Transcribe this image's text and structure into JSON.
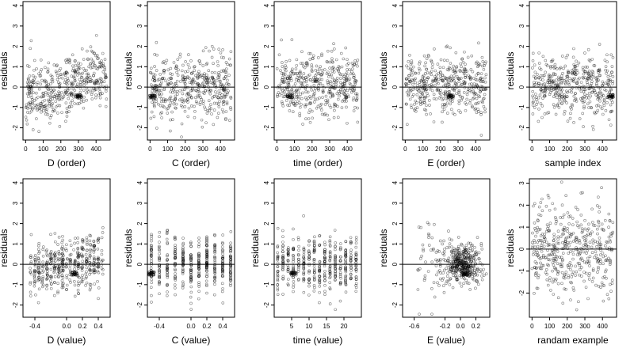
{
  "chart_data": [
    {
      "type": "scatter",
      "xlabel": "D (order)",
      "ylabel": "residuals",
      "xlim": [
        -15,
        480
      ],
      "ylim": [
        -2.6,
        4.2
      ],
      "xticks": [
        0,
        100,
        200,
        300,
        400
      ],
      "yticks": [
        -2,
        -1,
        0,
        1,
        2,
        3,
        4
      ],
      "hline": 0,
      "pattern": "order-d",
      "n": 440,
      "seed": 11,
      "cluster": {
        "x": 300,
        "y": -0.45
      }
    },
    {
      "type": "scatter",
      "xlabel": "C (order)",
      "ylabel": "residuals",
      "xlim": [
        -15,
        480
      ],
      "ylim": [
        -2.6,
        4.2
      ],
      "xticks": [
        0,
        100,
        200,
        300,
        400
      ],
      "yticks": [
        -2,
        -1,
        0,
        1,
        2,
        3,
        4
      ],
      "hline": 0,
      "pattern": "order",
      "n": 440,
      "seed": 23,
      "cluster": {
        "x": 15,
        "y": -0.45
      }
    },
    {
      "type": "scatter",
      "xlabel": "time (order)",
      "ylabel": "residuals",
      "xlim": [
        -15,
        480
      ],
      "ylim": [
        -2.6,
        4.2
      ],
      "xticks": [
        0,
        100,
        200,
        300,
        400
      ],
      "yticks": [
        -2,
        -1,
        0,
        1,
        2,
        3,
        4
      ],
      "hline": 0,
      "pattern": "order",
      "n": 440,
      "seed": 37,
      "cluster": {
        "x": 75,
        "y": -0.45
      }
    },
    {
      "type": "scatter",
      "xlabel": "E (order)",
      "ylabel": "residuals",
      "xlim": [
        -15,
        480
      ],
      "ylim": [
        -2.6,
        4.2
      ],
      "xticks": [
        0,
        100,
        200,
        300,
        400
      ],
      "yticks": [
        -2,
        -1,
        0,
        1,
        2,
        3,
        4
      ],
      "hline": 0,
      "pattern": "order",
      "n": 440,
      "seed": 41,
      "cluster": {
        "x": 260,
        "y": -0.45
      }
    },
    {
      "type": "scatter",
      "xlabel": "sample index",
      "ylabel": "residuals",
      "xlim": [
        -15,
        480
      ],
      "ylim": [
        -2.6,
        4.2
      ],
      "xticks": [
        0,
        100,
        200,
        300,
        400
      ],
      "yticks": [
        -2,
        -1,
        0,
        1,
        2,
        3,
        4
      ],
      "hline": 0,
      "pattern": "order",
      "n": 440,
      "seed": 53,
      "cluster": {
        "x": 445,
        "y": -0.45
      }
    },
    {
      "type": "scatter",
      "xlabel": "D (value)",
      "ylabel": "residuals",
      "xlim": [
        -0.55,
        0.55
      ],
      "ylim": [
        -2.6,
        4.2
      ],
      "xticks": [
        -0.4,
        0,
        0.2,
        0.4
      ],
      "xtick_labels": [
        "-0.4",
        "0.0",
        "0.2",
        "0.4"
      ],
      "yticks": [
        -2,
        -1,
        0,
        1,
        2,
        3,
        4
      ],
      "hline": 0,
      "pattern": "value-d",
      "n": 440,
      "seed": 61,
      "cluster": {
        "x": 0.1,
        "y": -0.45
      }
    },
    {
      "type": "scatter",
      "xlabel": "C (value)",
      "ylabel": "residuals",
      "xlim": [
        -0.55,
        0.55
      ],
      "ylim": [
        -2.6,
        4.2
      ],
      "xticks": [
        -0.4,
        0,
        0.2,
        0.4
      ],
      "xtick_labels": [
        "-0.4",
        "0.0",
        "0.2",
        "0.4"
      ],
      "yticks": [
        -2,
        -1,
        0,
        1,
        2,
        3,
        4
      ],
      "hline": 0,
      "pattern": "columns",
      "columns": [
        -0.5,
        -0.4,
        -0.3,
        -0.2,
        -0.1,
        0,
        0.1,
        0.2,
        0.3,
        0.4,
        0.5
      ],
      "n": 440,
      "seed": 71,
      "cluster": {
        "x": -0.5,
        "y": -0.45
      }
    },
    {
      "type": "scatter",
      "xlabel": "time (value)",
      "ylabel": "residuals",
      "xlim": [
        0,
        25
      ],
      "ylim": [
        -2.6,
        4.2
      ],
      "xticks": [
        5,
        10,
        15,
        20
      ],
      "yticks": [
        -2,
        -1,
        0,
        1,
        2,
        3,
        4
      ],
      "hline": 0,
      "pattern": "columns",
      "columns": [
        1,
        2.5,
        4,
        5.5,
        7,
        8.5,
        10,
        11.5,
        13,
        14.5,
        16,
        17.5,
        19,
        20.5,
        22,
        23.5
      ],
      "n": 440,
      "seed": 83,
      "cluster": {
        "x": 5.5,
        "y": -0.45
      }
    },
    {
      "type": "scatter",
      "xlabel": "E (value)",
      "ylabel": "residuals",
      "xlim": [
        -0.75,
        0.38
      ],
      "ylim": [
        -2.6,
        4.2
      ],
      "xticks": [
        -0.6,
        -0.2,
        0,
        0.2
      ],
      "xtick_labels": [
        "-0.6",
        "-0.2",
        "0.0",
        "0.2"
      ],
      "yticks": [
        -2,
        -1,
        0,
        1,
        2,
        3,
        4
      ],
      "hline": 0,
      "pattern": "value-e",
      "n": 440,
      "seed": 97,
      "cluster": {
        "x": 0.05,
        "y": -0.45
      }
    },
    {
      "type": "scatter",
      "xlabel": "randam example",
      "ylabel": "residuals",
      "xlim": [
        -15,
        480
      ],
      "ylim": [
        -3.1,
        3.2
      ],
      "xticks": [
        0,
        100,
        200,
        300,
        400
      ],
      "yticks": [
        -2,
        -1,
        0,
        1,
        2,
        3
      ],
      "hline": 0,
      "pattern": "random",
      "n": 440,
      "seed": 101
    }
  ]
}
